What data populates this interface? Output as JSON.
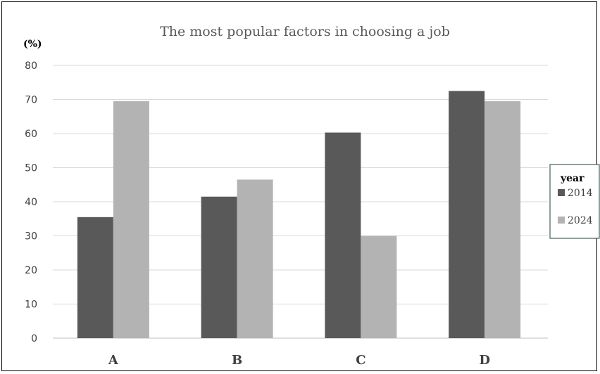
{
  "chart_data": {
    "type": "bar",
    "title": "The most popular factors in choosing a job",
    "unit_label": "(%)",
    "xlabel": "",
    "ylabel": "",
    "categories": [
      "A",
      "B",
      "C",
      "D"
    ],
    "series": [
      {
        "name": "2014",
        "values": [
          35.5,
          41.5,
          60.3,
          72.5
        ],
        "color": "#595959"
      },
      {
        "name": "2024",
        "values": [
          69.5,
          46.5,
          30.0,
          69.5
        ],
        "color": "#b3b3b3"
      }
    ],
    "ylim": [
      0,
      80
    ],
    "yticks": [
      0,
      10,
      20,
      30,
      40,
      50,
      60,
      70,
      80
    ],
    "grid": true,
    "legend": {
      "title": "year",
      "placement": "right"
    }
  }
}
